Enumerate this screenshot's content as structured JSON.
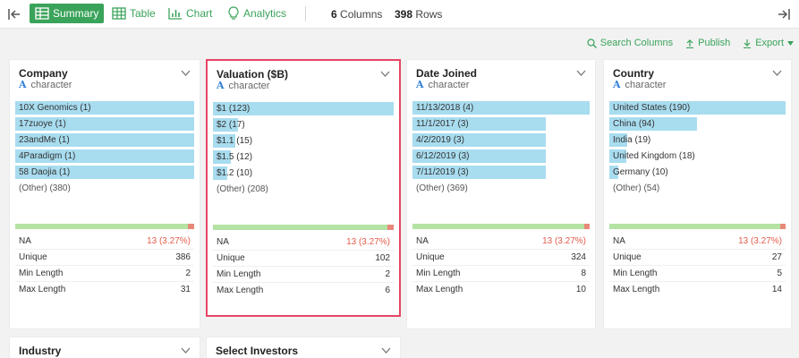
{
  "toolbar": {
    "tabs": [
      {
        "label": "Summary",
        "icon": "summary-grid-icon",
        "active": true
      },
      {
        "label": "Table",
        "icon": "table-icon",
        "active": false
      },
      {
        "label": "Chart",
        "icon": "chart-icon",
        "active": false
      },
      {
        "label": "Analytics",
        "icon": "lightbulb-icon",
        "active": false
      }
    ],
    "columns_count": "6",
    "columns_label": "Columns",
    "rows_count": "398",
    "rows_label": "Rows"
  },
  "actions": {
    "search_columns": "Search Columns",
    "publish": "Publish",
    "export": "Export"
  },
  "colors": {
    "accent": "#3aa35a",
    "bar": "#a8dcef",
    "selected_border": "#e64565",
    "valid": "#b5e3a4",
    "missing": "#e8897a",
    "na_value": "#e45b4b",
    "type_icon": "#2f7ed8"
  },
  "cards": [
    {
      "title": "Company",
      "type_icon": "A",
      "type": "character",
      "selected": false,
      "bars": [
        {
          "label": "10X Genomics (1)",
          "fraction": 1.0
        },
        {
          "label": "17zuoye (1)",
          "fraction": 1.0
        },
        {
          "label": "23andMe (1)",
          "fraction": 1.0
        },
        {
          "label": "4Paradigm (1)",
          "fraction": 1.0
        },
        {
          "label": "58 Daojia (1)",
          "fraction": 1.0
        }
      ],
      "other": "(Other) (380)",
      "missing_fraction": 0.0327,
      "stats": [
        {
          "key": "NA",
          "value": "13 (3.27%)",
          "na": true
        },
        {
          "key": "Unique",
          "value": "386"
        },
        {
          "key": "Min Length",
          "value": "2"
        },
        {
          "key": "Max Length",
          "value": "31"
        }
      ]
    },
    {
      "title": "Valuation ($B)",
      "type_icon": "A",
      "type": "character",
      "selected": true,
      "bars": [
        {
          "label": "$1 (123)",
          "fraction": 1.0
        },
        {
          "label": "$2 (17)",
          "fraction": 0.138
        },
        {
          "label": "$1.1 (15)",
          "fraction": 0.122
        },
        {
          "label": "$1.5 (12)",
          "fraction": 0.098
        },
        {
          "label": "$1.2 (10)",
          "fraction": 0.081
        }
      ],
      "other": "(Other) (208)",
      "missing_fraction": 0.0327,
      "stats": [
        {
          "key": "NA",
          "value": "13 (3.27%)",
          "na": true
        },
        {
          "key": "Unique",
          "value": "102"
        },
        {
          "key": "Min Length",
          "value": "2"
        },
        {
          "key": "Max Length",
          "value": "6"
        }
      ]
    },
    {
      "title": "Date Joined",
      "type_icon": "A",
      "type": "character",
      "selected": false,
      "bars": [
        {
          "label": "11/13/2018 (4)",
          "fraction": 1.0
        },
        {
          "label": "11/1/2017 (3)",
          "fraction": 0.75
        },
        {
          "label": "4/2/2019 (3)",
          "fraction": 0.75
        },
        {
          "label": "6/12/2019 (3)",
          "fraction": 0.75
        },
        {
          "label": "7/11/2019 (3)",
          "fraction": 0.75
        }
      ],
      "other": "(Other) (369)",
      "missing_fraction": 0.0327,
      "stats": [
        {
          "key": "NA",
          "value": "13 (3.27%)",
          "na": true
        },
        {
          "key": "Unique",
          "value": "324"
        },
        {
          "key": "Min Length",
          "value": "8"
        },
        {
          "key": "Max Length",
          "value": "10"
        }
      ]
    },
    {
      "title": "Country",
      "type_icon": "A",
      "type": "character",
      "selected": false,
      "bars": [
        {
          "label": "United States (190)",
          "fraction": 1.0
        },
        {
          "label": "China (94)",
          "fraction": 0.495
        },
        {
          "label": "India (19)",
          "fraction": 0.1
        },
        {
          "label": "United Kingdom (18)",
          "fraction": 0.095
        },
        {
          "label": "Germany (10)",
          "fraction": 0.053
        }
      ],
      "other": "(Other) (54)",
      "missing_fraction": 0.0327,
      "stats": [
        {
          "key": "NA",
          "value": "13 (3.27%)",
          "na": true
        },
        {
          "key": "Unique",
          "value": "27"
        },
        {
          "key": "Min Length",
          "value": "5"
        },
        {
          "key": "Max Length",
          "value": "14"
        }
      ]
    },
    {
      "title": "Industry",
      "selected": false
    },
    {
      "title": "Select Investors",
      "selected": false
    }
  ]
}
